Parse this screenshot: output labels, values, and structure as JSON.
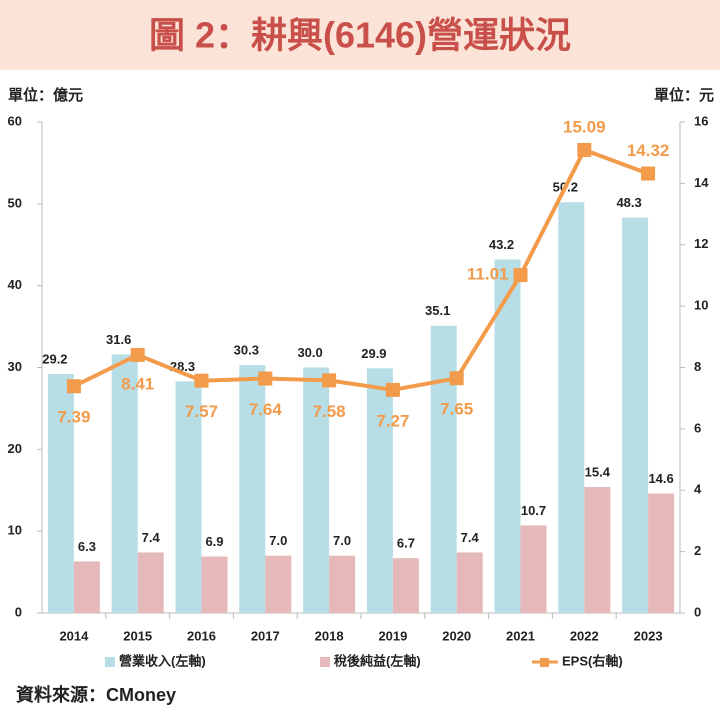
{
  "chart_data": {
    "type": "bar-line",
    "title": "圖 2：耕興(6146)營運狀況",
    "y_unit_label": "單位：億元",
    "y2_unit_label": "單位：元",
    "source": "資料來源：CMoney",
    "categories": [
      "2014",
      "2015",
      "2016",
      "2017",
      "2018",
      "2019",
      "2020",
      "2021",
      "2022",
      "2023"
    ],
    "series": [
      {
        "name": "營業收入(左軸)",
        "type": "bar",
        "color": "#b7dde6",
        "values": [
          29.2,
          31.6,
          28.3,
          30.3,
          30.0,
          29.9,
          35.1,
          43.2,
          50.2,
          48.3
        ],
        "value_labels": [
          "29.2",
          "31.6",
          "28.3",
          "30.3",
          "30.0",
          "29.9",
          "35.1",
          "43.2",
          "50.2",
          "48.3"
        ]
      },
      {
        "name": "稅後純益(左軸)",
        "type": "bar",
        "color": "#e5b9b9",
        "values": [
          6.3,
          7.4,
          6.9,
          7.0,
          7.0,
          6.7,
          7.4,
          10.7,
          15.4,
          14.6
        ],
        "value_labels": [
          "6.3",
          "7.4",
          "6.9",
          "7.0",
          "7.0",
          "6.7",
          "7.4",
          "10.7",
          "15.4",
          "14.6"
        ]
      },
      {
        "name": "EPS(右軸)",
        "type": "line",
        "axis": "y2",
        "color": "#f29b4b",
        "values": [
          7.39,
          8.41,
          7.57,
          7.64,
          7.58,
          7.27,
          7.65,
          11.01,
          15.09,
          14.32
        ],
        "value_labels": [
          "7.39",
          "8.41",
          "7.57",
          "7.64",
          "7.58",
          "7.27",
          "7.65",
          "11.01",
          "15.09",
          "14.32"
        ]
      }
    ],
    "ylim": [
      0,
      60
    ],
    "yticks": [
      0,
      10,
      20,
      30,
      40,
      50,
      60
    ],
    "y2lim": [
      0,
      16
    ],
    "y2ticks": [
      0,
      2,
      4,
      6,
      8,
      10,
      12,
      14,
      16
    ],
    "grid": false
  }
}
